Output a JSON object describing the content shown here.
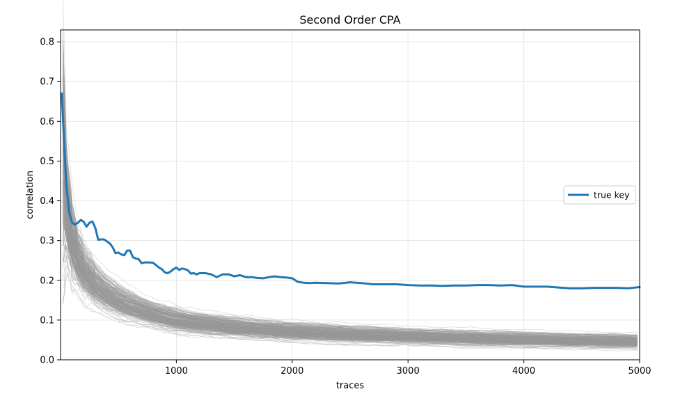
{
  "chart_data": {
    "type": "line",
    "title": "Second Order CPA",
    "xlabel": "traces",
    "ylabel": "correlation",
    "xlim": [
      0,
      5000
    ],
    "ylim": [
      0,
      0.83
    ],
    "xticks": [
      1000,
      2000,
      3000,
      4000,
      5000
    ],
    "yticks": [
      0.0,
      0.1,
      0.2,
      0.3,
      0.4,
      0.5,
      0.6,
      0.7,
      0.8
    ],
    "xtick_labels": [
      "1000",
      "2000",
      "3000",
      "4000",
      "5000"
    ],
    "ytick_labels": [
      "0.0",
      "0.1",
      "0.2",
      "0.3",
      "0.4",
      "0.5",
      "0.6",
      "0.7",
      "0.8"
    ],
    "grid": true,
    "legend": {
      "placement": "center-right",
      "entries": [
        "true key"
      ]
    },
    "background_series": {
      "count": 255,
      "color": "#999999",
      "description_fields": {
        "x": [
          20,
          50,
          100,
          150,
          200,
          300,
          400,
          500,
          600,
          700,
          800,
          1000,
          1200,
          1500,
          1800,
          2000,
          2500,
          3000,
          3500,
          4000,
          4500,
          5000
        ],
        "median": [
          0.5,
          0.39,
          0.3,
          0.255,
          0.225,
          0.19,
          0.165,
          0.148,
          0.135,
          0.125,
          0.115,
          0.1,
          0.092,
          0.082,
          0.075,
          0.071,
          0.064,
          0.059,
          0.055,
          0.051,
          0.048,
          0.046
        ],
        "spread": [
          0.15,
          0.07,
          0.045,
          0.035,
          0.03,
          0.025,
          0.022,
          0.02,
          0.018,
          0.016,
          0.015,
          0.014,
          0.013,
          0.012,
          0.011,
          0.011,
          0.01,
          0.009,
          0.009,
          0.009,
          0.008,
          0.008
        ]
      }
    },
    "series": [
      {
        "name": "true key",
        "color": "#1f77b4",
        "x": [
          10,
          30,
          50,
          75,
          100,
          125,
          150,
          175,
          200,
          225,
          250,
          275,
          300,
          325,
          350,
          375,
          400,
          425,
          450,
          475,
          500,
          525,
          550,
          575,
          600,
          625,
          650,
          675,
          700,
          725,
          750,
          775,
          800,
          825,
          850,
          875,
          900,
          925,
          950,
          975,
          1000,
          1025,
          1050,
          1075,
          1100,
          1125,
          1150,
          1175,
          1200,
          1250,
          1300,
          1350,
          1400,
          1450,
          1500,
          1550,
          1600,
          1650,
          1700,
          1750,
          1800,
          1850,
          1900,
          1950,
          2000,
          2050,
          2100,
          2150,
          2200,
          2300,
          2400,
          2500,
          2600,
          2700,
          2800,
          2900,
          3000,
          3100,
          3200,
          3300,
          3400,
          3500,
          3600,
          3700,
          3800,
          3900,
          4000,
          4100,
          4200,
          4300,
          4400,
          4500,
          4600,
          4700,
          4800,
          4900,
          5000
        ],
        "values": [
          0.67,
          0.55,
          0.44,
          0.37,
          0.345,
          0.34,
          0.345,
          0.352,
          0.347,
          0.335,
          0.345,
          0.348,
          0.332,
          0.302,
          0.303,
          0.303,
          0.298,
          0.293,
          0.283,
          0.268,
          0.27,
          0.265,
          0.263,
          0.275,
          0.275,
          0.258,
          0.255,
          0.253,
          0.243,
          0.245,
          0.245,
          0.245,
          0.244,
          0.238,
          0.232,
          0.228,
          0.22,
          0.218,
          0.222,
          0.228,
          0.232,
          0.226,
          0.23,
          0.228,
          0.225,
          0.217,
          0.218,
          0.215,
          0.218,
          0.218,
          0.215,
          0.208,
          0.215,
          0.215,
          0.21,
          0.213,
          0.208,
          0.208,
          0.206,
          0.205,
          0.208,
          0.21,
          0.208,
          0.207,
          0.205,
          0.196,
          0.194,
          0.193,
          0.194,
          0.193,
          0.192,
          0.195,
          0.193,
          0.19,
          0.19,
          0.19,
          0.188,
          0.187,
          0.187,
          0.186,
          0.187,
          0.187,
          0.188,
          0.188,
          0.187,
          0.188,
          0.184,
          0.184,
          0.184,
          0.182,
          0.18,
          0.18,
          0.181,
          0.181,
          0.181,
          0.18,
          0.183
        ]
      }
    ]
  }
}
